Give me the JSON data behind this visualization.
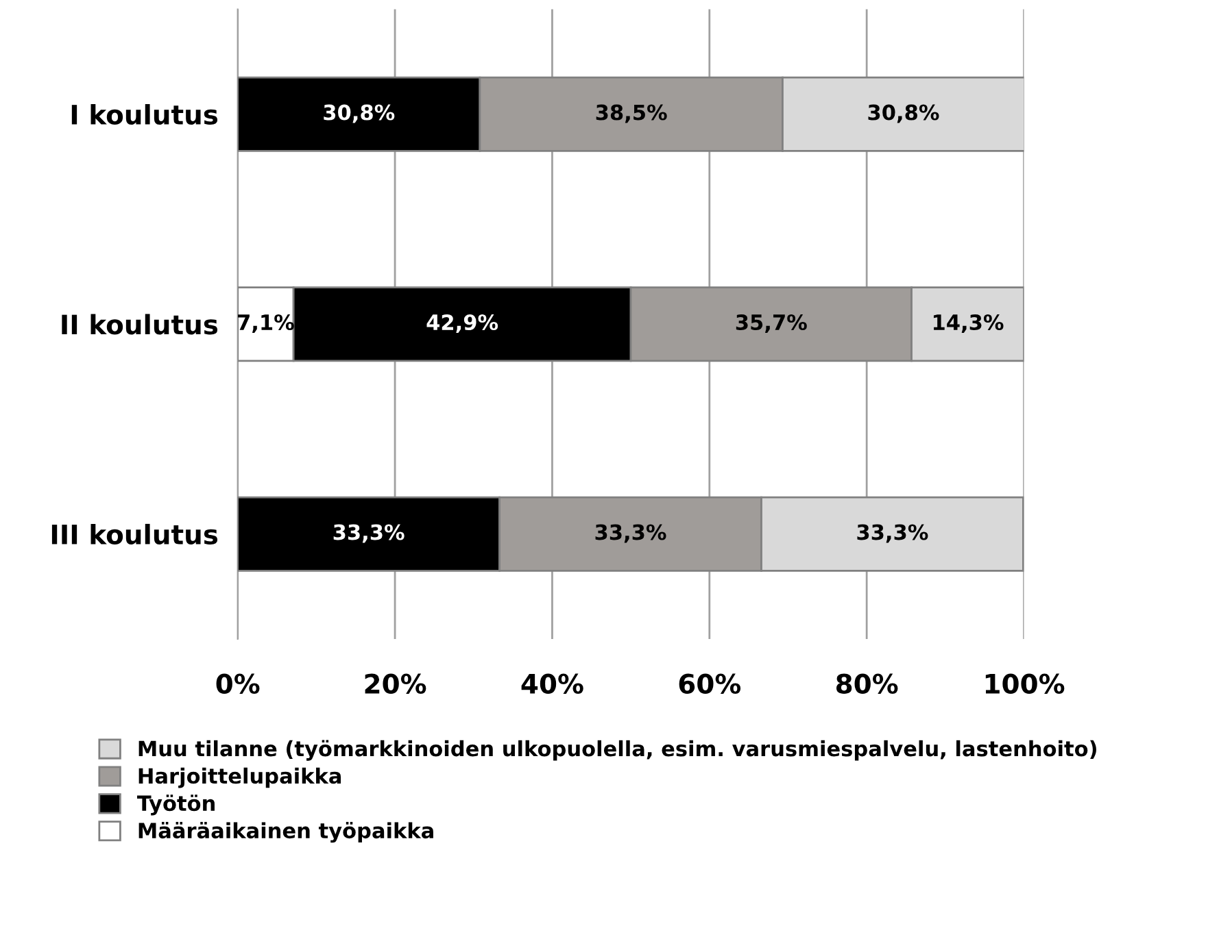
{
  "chart_data": {
    "type": "bar",
    "orientation": "horizontal",
    "stacked": true,
    "categories": [
      "I koulutus",
      "II koulutus",
      "III koulutus"
    ],
    "series": [
      {
        "name": "Määräaikainen työpaikka",
        "color": "#ffffff",
        "values": [
          null,
          7.1,
          null
        ],
        "value_labels": [
          null,
          "7,1%",
          null
        ]
      },
      {
        "name": "Työtön",
        "color": "#000000",
        "values": [
          30.8,
          42.9,
          33.3
        ],
        "value_labels": [
          "30,8%",
          "42,9%",
          "33,3%"
        ]
      },
      {
        "name": "Harjoittelupaikka",
        "color": "#a09c99",
        "values": [
          38.5,
          35.7,
          33.3
        ],
        "value_labels": [
          "38,5%",
          "35,7%",
          "33,3%"
        ]
      },
      {
        "name": "Muu tilanne (työmarkkinoiden ulkopuolella, esim. varusmiespalvelu, lastenhoito)",
        "color": "#d9d9d9",
        "values": [
          30.8,
          14.3,
          33.3
        ],
        "value_labels": [
          "30,8%",
          "14,3%",
          "33,3%"
        ]
      }
    ],
    "xlim": [
      0,
      100
    ],
    "xticks": [
      {
        "value": 0,
        "label": "0%"
      },
      {
        "value": 20,
        "label": "20%"
      },
      {
        "value": 40,
        "label": "40%"
      },
      {
        "value": 60,
        "label": "60%"
      },
      {
        "value": 80,
        "label": "80%"
      },
      {
        "value": 100,
        "label": "100%"
      }
    ],
    "grid": "x",
    "legend": "bottom"
  }
}
